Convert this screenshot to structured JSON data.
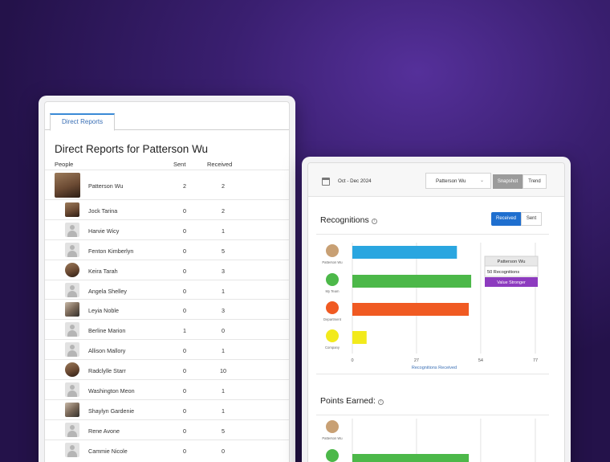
{
  "left": {
    "tab_label": "Direct Reports",
    "title": "Direct Reports for Patterson Wu",
    "columns": {
      "people": "People",
      "sent": "Sent",
      "received": "Received"
    },
    "rows": [
      {
        "name": "Patterson Wu",
        "sent": "2",
        "received": "2",
        "avatar": "photo"
      },
      {
        "name": "Jock Tarina",
        "sent": "0",
        "received": "2",
        "avatar": "photo"
      },
      {
        "name": "Harvie Wicy",
        "sent": "0",
        "received": "1",
        "avatar": "gray"
      },
      {
        "name": "Fenton Kimberlyn",
        "sent": "0",
        "received": "5",
        "avatar": "gray"
      },
      {
        "name": "Keira Tarah",
        "sent": "0",
        "received": "3",
        "avatar": "round"
      },
      {
        "name": "Angela Shelley",
        "sent": "0",
        "received": "1",
        "avatar": "gray"
      },
      {
        "name": "Leyia Noble",
        "sent": "0",
        "received": "3",
        "avatar": "photo2"
      },
      {
        "name": "Berline Marion",
        "sent": "1",
        "received": "0",
        "avatar": "gray"
      },
      {
        "name": "Allison Mallory",
        "sent": "0",
        "received": "1",
        "avatar": "gray"
      },
      {
        "name": "Radclylle Starr",
        "sent": "0",
        "received": "10",
        "avatar": "round"
      },
      {
        "name": "Washington Meon",
        "sent": "0",
        "received": "1",
        "avatar": "gray"
      },
      {
        "name": "Shaylyn Gardenie",
        "sent": "0",
        "received": "1",
        "avatar": "photo2"
      },
      {
        "name": "Rene Avone",
        "sent": "0",
        "received": "5",
        "avatar": "gray"
      },
      {
        "name": "Cammie Nicole",
        "sent": "0",
        "received": "0",
        "avatar": "gray"
      }
    ]
  },
  "right": {
    "date_range": "Oct - Dec 2024",
    "person_select": "Patterson Wu",
    "view_tabs": [
      "Snapshot",
      "Trend"
    ],
    "recognitions_title": "Recognitions",
    "toggle": [
      "Received",
      "Sent"
    ],
    "points_title": "Points Earned:",
    "tooltip": {
      "name": "Patterson Wu",
      "count": "50 Recognitions",
      "tag": "Value Stronger"
    }
  },
  "chart_data": [
    {
      "type": "bar",
      "orientation": "horizontal",
      "title": "Recognitions",
      "categories": [
        "Patterson Wu",
        "My Team",
        "Department",
        "Company"
      ],
      "values": [
        44,
        50,
        49,
        6
      ],
      "colors": [
        "#2aa6e0",
        "#4cb849",
        "#f05a22",
        "#f2ea1c"
      ],
      "icon_colors": [
        "#c8a074",
        "#4cb849",
        "#f05a22",
        "#f2ea1c"
      ],
      "xlabel": "Recognitions Received",
      "xticks": [
        "0",
        "27",
        "54",
        "77"
      ],
      "xlim": [
        0,
        77
      ]
    },
    {
      "type": "bar",
      "orientation": "horizontal",
      "title": "Points Earned:",
      "categories": [
        "Patterson Wu",
        "My Team"
      ],
      "values": [
        null,
        49
      ],
      "colors": [
        "#2aa6e0",
        "#4cb849"
      ]
    }
  ]
}
